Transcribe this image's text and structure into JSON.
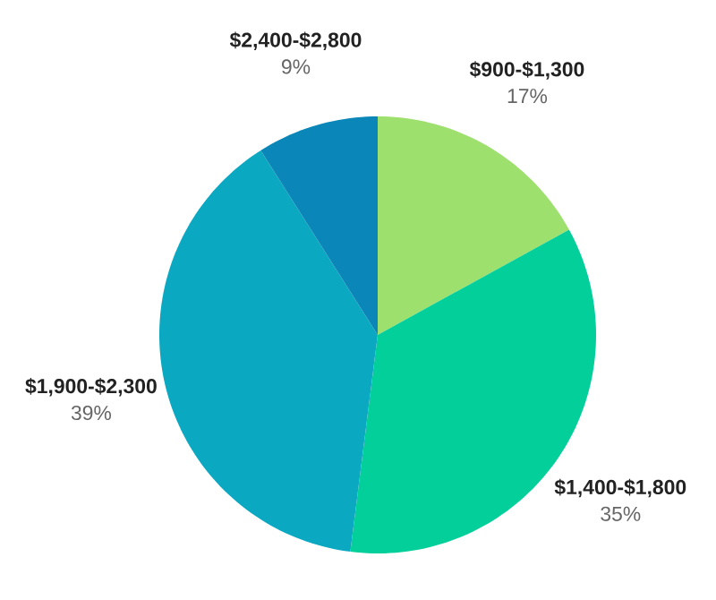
{
  "chart_data": {
    "type": "pie",
    "categories": [
      "$900-$1,300",
      "$1,400-$1,800",
      "$1,900-$2,300",
      "$2,400-$2,800"
    ],
    "values": [
      17,
      35,
      39,
      9
    ],
    "value_labels": [
      "17%",
      "35%",
      "39%",
      "9%"
    ],
    "colors": [
      "#9de06d",
      "#03cf9b",
      "#0ba8c2",
      "#0a87b8"
    ]
  }
}
